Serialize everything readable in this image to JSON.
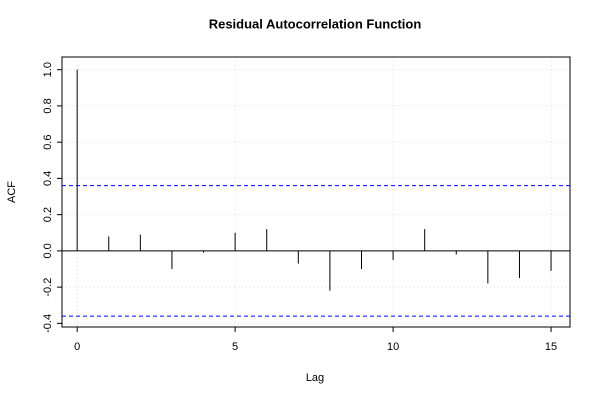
{
  "chart_data": {
    "type": "acf",
    "title": "Residual Autocorrelation Function",
    "x_label": "Lag",
    "y_label": "ACF",
    "x": [
      0,
      1,
      2,
      3,
      4,
      5,
      6,
      7,
      8,
      9,
      10,
      11,
      12,
      13,
      14,
      15
    ],
    "values": [
      1.0,
      0.08,
      0.09,
      -0.1,
      -0.01,
      0.1,
      0.12,
      -0.07,
      -0.22,
      -0.1,
      -0.05,
      0.12,
      -0.02,
      -0.18,
      -0.15,
      -0.11
    ],
    "color": "#000000",
    "confidence_limits": [
      0.36,
      -0.36
    ],
    "confidence_color": "#0000ff",
    "xlim": [
      -0.48,
      15.6
    ],
    "xticks": [
      0,
      5,
      10,
      15
    ],
    "ylim": [
      -0.42,
      1.07
    ],
    "yticks": [
      -0.4,
      -0.2,
      {
        "value": 0,
        "label": "0.0"
      },
      0.2,
      0.4,
      0.6,
      0.8,
      {
        "value": 1,
        "label": "1.0"
      }
    ],
    "grid": true
  }
}
